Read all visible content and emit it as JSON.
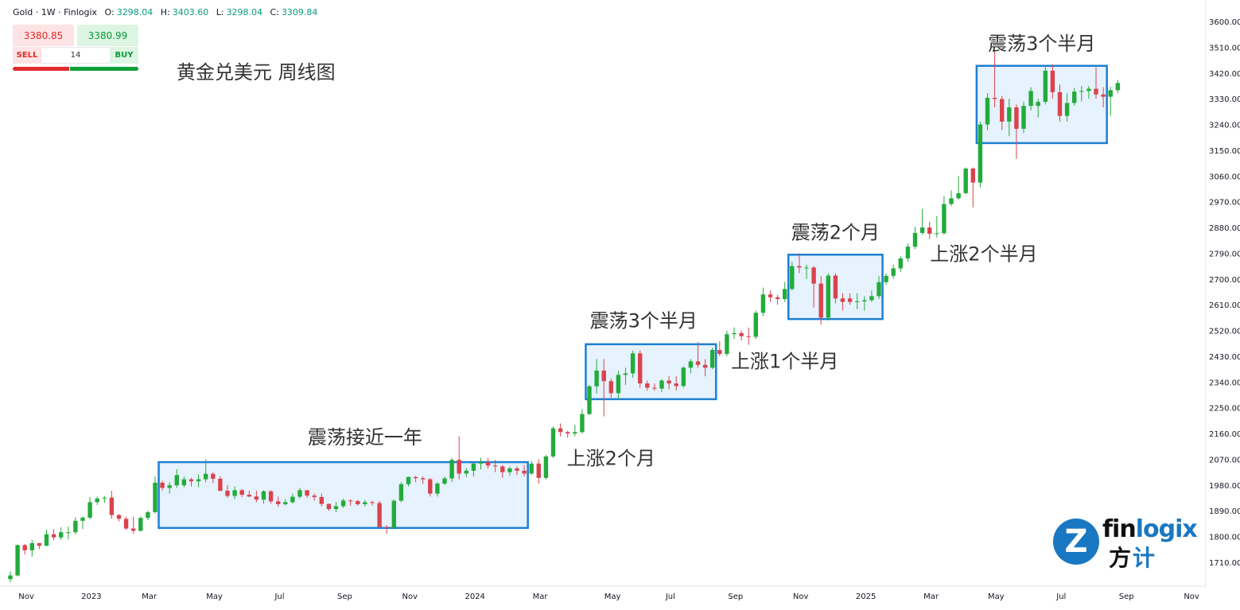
{
  "header": {
    "symbol": "Gold · 1W · Finlogix",
    "open_label": "O:",
    "open": "3298.04",
    "high_label": "H:",
    "high": "3403.60",
    "low_label": "L:",
    "low": "3298.04",
    "close_label": "C:",
    "close": "3309.84"
  },
  "trade": {
    "sell_price": "3380.85",
    "buy_price": "3380.99",
    "sell_label": "SELL",
    "buy_label": "BUY",
    "lot": "14"
  },
  "logo": {
    "word_a": "fin",
    "word_b": "logix",
    "cn_a": "方",
    "cn_b": "计",
    "mark": "Z"
  },
  "colors": {
    "up": "#089981",
    "up_fill": "#22ab3c",
    "down": "#d9434e",
    "box_stroke": "#1e7fd1",
    "box_fill": "#e6f2fd"
  },
  "chart_data": {
    "type": "candlestick",
    "title": "黄金兑美元 周线图",
    "interval": "1W",
    "ylim": [
      1640,
      3620
    ],
    "y_ticks": [
      "3600.00",
      "3510.00",
      "3420.00",
      "3330.00",
      "3240.00",
      "3150.00",
      "3060.00",
      "2970.00",
      "2880.00",
      "2790.00",
      "2700.00",
      "2610.00",
      "2520.00",
      "2430.00",
      "2340.00",
      "2250.00",
      "2160.00",
      "2070.00",
      "1980.00",
      "1890.00",
      "1800.00",
      "1710.00"
    ],
    "x_ticks": [
      {
        "i": 0,
        "label": "Nov"
      },
      {
        "i": 9,
        "label": "2023"
      },
      {
        "i": 17,
        "label": "Mar"
      },
      {
        "i": 26,
        "label": "May"
      },
      {
        "i": 35,
        "label": "Jul"
      },
      {
        "i": 44,
        "label": "Sep"
      },
      {
        "i": 53,
        "label": "Nov"
      },
      {
        "i": 62,
        "label": "2024"
      },
      {
        "i": 71,
        "label": "Mar"
      },
      {
        "i": 81,
        "label": "May"
      },
      {
        "i": 89,
        "label": "Jul"
      },
      {
        "i": 98,
        "label": "Sep"
      },
      {
        "i": 107,
        "label": "Nov"
      },
      {
        "i": 116,
        "label": "2025"
      },
      {
        "i": 125,
        "label": "Mar"
      },
      {
        "i": 134,
        "label": "May"
      },
      {
        "i": 143,
        "label": "Jul"
      },
      {
        "i": 152,
        "label": "Sep"
      },
      {
        "i": 161,
        "label": "Nov"
      }
    ],
    "candles": [
      [
        1651,
        1678,
        1640,
        1664
      ],
      [
        1664,
        1772,
        1660,
        1770
      ],
      [
        1770,
        1774,
        1737,
        1752
      ],
      [
        1752,
        1788,
        1730,
        1777
      ],
      [
        1777,
        1778,
        1756,
        1768
      ],
      [
        1768,
        1824,
        1765,
        1808
      ],
      [
        1808,
        1826,
        1787,
        1797
      ],
      [
        1797,
        1832,
        1788,
        1815
      ],
      [
        1815,
        1835,
        1790,
        1815
      ],
      [
        1815,
        1868,
        1808,
        1855
      ],
      [
        1855,
        1870,
        1826,
        1866
      ],
      [
        1866,
        1938,
        1860,
        1920
      ],
      [
        1920,
        1940,
        1910,
        1933
      ],
      [
        1933,
        1942,
        1918,
        1936
      ],
      [
        1936,
        1960,
        1862,
        1875
      ],
      [
        1875,
        1878,
        1853,
        1862
      ],
      [
        1862,
        1870,
        1823,
        1828
      ],
      [
        1828,
        1870,
        1810,
        1820
      ],
      [
        1820,
        1870,
        1818,
        1865
      ],
      [
        1865,
        1890,
        1857,
        1885
      ],
      [
        1885,
        2010,
        1880,
        1988
      ],
      [
        1988,
        1995,
        1960,
        1970
      ],
      [
        1970,
        1990,
        1950,
        1979
      ],
      [
        1979,
        2035,
        1970,
        2015
      ],
      [
        1979,
        2010,
        1972,
        2000
      ],
      [
        2000,
        2005,
        1975,
        1993
      ],
      [
        1993,
        2017,
        1973,
        2000
      ],
      [
        2000,
        2070,
        1990,
        2019
      ],
      [
        2019,
        2025,
        1987,
        2002
      ],
      [
        2002,
        2010,
        1958,
        1960
      ],
      [
        1960,
        1980,
        1936,
        1942
      ],
      [
        1942,
        1975,
        1930,
        1962
      ],
      [
        1962,
        1966,
        1938,
        1946
      ],
      [
        1946,
        1960,
        1937,
        1940
      ],
      [
        1940,
        1960,
        1920,
        1929
      ],
      [
        1929,
        1962,
        1915,
        1958
      ],
      [
        1958,
        1962,
        1915,
        1923
      ],
      [
        1923,
        1940,
        1903,
        1913
      ],
      [
        1913,
        1930,
        1908,
        1920
      ],
      [
        1920,
        1950,
        1915,
        1939
      ],
      [
        1939,
        1970,
        1933,
        1962
      ],
      [
        1962,
        1962,
        1935,
        1943
      ],
      [
        1943,
        1950,
        1925,
        1938
      ],
      [
        1938,
        1950,
        1905,
        1914
      ],
      [
        1914,
        1915,
        1890,
        1896
      ],
      [
        1896,
        1920,
        1885,
        1906
      ],
      [
        1906,
        1932,
        1900,
        1926
      ],
      [
        1926,
        1930,
        1908,
        1924
      ],
      [
        1924,
        1928,
        1908,
        1913
      ],
      [
        1913,
        1928,
        1905,
        1920
      ],
      [
        1920,
        1925,
        1908,
        1917
      ],
      [
        1917,
        1925,
        1840,
        1833
      ],
      [
        1833,
        1840,
        1810,
        1830
      ],
      [
        1830,
        1930,
        1825,
        1925
      ],
      [
        1925,
        1990,
        1920,
        1983
      ],
      [
        1983,
        2010,
        1975,
        2008
      ],
      [
        2008,
        2012,
        1990,
        2004
      ],
      [
        2004,
        2010,
        1984,
        2000
      ],
      [
        2000,
        2005,
        1940,
        1950
      ],
      [
        1950,
        1990,
        1940,
        1985
      ],
      [
        1985,
        2010,
        1980,
        2003
      ],
      [
        2003,
        2075,
        1990,
        2068
      ],
      [
        2068,
        2150,
        2000,
        2020
      ],
      [
        2020,
        2040,
        2008,
        2030
      ],
      [
        2030,
        2058,
        2010,
        2055
      ],
      [
        2055,
        2075,
        2035,
        2060
      ],
      [
        2060,
        2075,
        2038,
        2048
      ],
      [
        2048,
        2068,
        2025,
        2045
      ],
      [
        2045,
        2050,
        2005,
        2025
      ],
      [
        2025,
        2045,
        2012,
        2038
      ],
      [
        2038,
        2045,
        2015,
        2030
      ],
      [
        2030,
        2050,
        2010,
        2020
      ],
      [
        2020,
        2065,
        2015,
        2055
      ],
      [
        2055,
        2070,
        1985,
        2005
      ],
      [
        2005,
        2085,
        2000,
        2080
      ],
      [
        2080,
        2185,
        2075,
        2178
      ],
      [
        2178,
        2195,
        2150,
        2165
      ],
      [
        2165,
        2170,
        2145,
        2160
      ],
      [
        2160,
        2190,
        2150,
        2165
      ],
      [
        2165,
        2245,
        2160,
        2228
      ],
      [
        2228,
        2330,
        2225,
        2325
      ],
      [
        2325,
        2420,
        2300,
        2380
      ],
      [
        2380,
        2420,
        2220,
        2343
      ],
      [
        2343,
        2352,
        2285,
        2301
      ],
      [
        2301,
        2380,
        2280,
        2365
      ],
      [
        2365,
        2390,
        2330,
        2370
      ],
      [
        2370,
        2450,
        2355,
        2440
      ],
      [
        2440,
        2450,
        2320,
        2335
      ],
      [
        2335,
        2345,
        2310,
        2320
      ],
      [
        2320,
        2335,
        2310,
        2317
      ],
      [
        2317,
        2350,
        2305,
        2345
      ],
      [
        2345,
        2360,
        2315,
        2335
      ],
      [
        2335,
        2360,
        2310,
        2326
      ],
      [
        2326,
        2395,
        2320,
        2390
      ],
      [
        2390,
        2420,
        2370,
        2412
      ],
      [
        2412,
        2480,
        2390,
        2400
      ],
      [
        2400,
        2420,
        2360,
        2390
      ],
      [
        2390,
        2460,
        2385,
        2452
      ],
      [
        2452,
        2482,
        2430,
        2438
      ],
      [
        2438,
        2520,
        2430,
        2507
      ],
      [
        2507,
        2531,
        2490,
        2511
      ],
      [
        2511,
        2520,
        2485,
        2500
      ],
      [
        2500,
        2530,
        2470,
        2498
      ],
      [
        2498,
        2590,
        2490,
        2582
      ],
      [
        2582,
        2670,
        2570,
        2646
      ],
      [
        2646,
        2660,
        2620,
        2636
      ],
      [
        2636,
        2645,
        2610,
        2630
      ],
      [
        2630,
        2690,
        2620,
        2665
      ],
      [
        2665,
        2760,
        2660,
        2745
      ],
      [
        2745,
        2790,
        2720,
        2740
      ],
      [
        2740,
        2750,
        2700,
        2740
      ],
      [
        2740,
        2745,
        2600,
        2684
      ],
      [
        2684,
        2710,
        2540,
        2565
      ],
      [
        2565,
        2720,
        2555,
        2712
      ],
      [
        2712,
        2720,
        2615,
        2632
      ],
      [
        2632,
        2650,
        2590,
        2620
      ],
      [
        2632,
        2650,
        2610,
        2620
      ],
      [
        2620,
        2650,
        2595,
        2622
      ],
      [
        2622,
        2640,
        2590,
        2626
      ],
      [
        2626,
        2660,
        2620,
        2640
      ],
      [
        2640,
        2710,
        2630,
        2689
      ],
      [
        2689,
        2720,
        2680,
        2711
      ],
      [
        2711,
        2750,
        2700,
        2737
      ],
      [
        2737,
        2780,
        2725,
        2772
      ],
      [
        2772,
        2825,
        2760,
        2813
      ],
      [
        2813,
        2882,
        2805,
        2861
      ],
      [
        2861,
        2945,
        2855,
        2880
      ],
      [
        2880,
        2900,
        2840,
        2858
      ],
      [
        2858,
        2920,
        2845,
        2860
      ],
      [
        2860,
        2990,
        2855,
        2962
      ],
      [
        2962,
        3010,
        2955,
        2982
      ],
      [
        2982,
        3060,
        2978,
        3000
      ],
      [
        3000,
        3090,
        2995,
        3086
      ],
      [
        3086,
        3090,
        2950,
        3037
      ],
      [
        3037,
        3250,
        3020,
        3240
      ],
      [
        3240,
        3350,
        3220,
        3333
      ],
      [
        3333,
        3500,
        3300,
        3329
      ],
      [
        3329,
        3340,
        3220,
        3250
      ],
      [
        3250,
        3330,
        3200,
        3300
      ],
      [
        3300,
        3310,
        3120,
        3225
      ],
      [
        3225,
        3320,
        3210,
        3305
      ],
      [
        3305,
        3370,
        3290,
        3357
      ],
      [
        3305,
        3330,
        3265,
        3319
      ],
      [
        3319,
        3440,
        3310,
        3428
      ],
      [
        3428,
        3450,
        3330,
        3353
      ],
      [
        3353,
        3380,
        3250,
        3270
      ],
      [
        3270,
        3350,
        3250,
        3315
      ],
      [
        3315,
        3368,
        3305,
        3355
      ],
      [
        3355,
        3375,
        3320,
        3357
      ],
      [
        3357,
        3375,
        3330,
        3365
      ],
      [
        3365,
        3440,
        3330,
        3345
      ],
      [
        3345,
        3370,
        3300,
        3337
      ],
      [
        3337,
        3372,
        3270,
        3360
      ],
      [
        3360,
        3395,
        3350,
        3385
      ]
    ],
    "zones": [
      {
        "type": "range",
        "i0": 20.5,
        "i1": 71.5,
        "low": 1830,
        "high": 2060,
        "label": "震荡接近一年",
        "label_i": 49,
        "label_price": 2124
      },
      {
        "type": "rise",
        "label": "上涨2个月",
        "label_i": 83,
        "label_price": 2050
      },
      {
        "type": "range",
        "i0": 79.5,
        "i1": 97.5,
        "low": 2280,
        "high": 2472,
        "label": "震荡3个半月",
        "label_i": 87.5,
        "label_price": 2532
      },
      {
        "type": "rise",
        "label": "上涨1个半月",
        "label_i": 107,
        "label_price": 2390
      },
      {
        "type": "range",
        "i0": 107.5,
        "i1": 120.5,
        "low": 2560,
        "high": 2785,
        "label": "震荡2个月",
        "label_i": 114,
        "label_price": 2840
      },
      {
        "type": "rise",
        "label": "上涨2个半月",
        "label_i": 134.5,
        "label_price": 2765
      },
      {
        "type": "range",
        "i0": 133.5,
        "i1": 151.5,
        "low": 3175,
        "high": 3445,
        "label": "震荡3个半月",
        "label_i": 142.5,
        "label_price": 3500
      }
    ]
  }
}
